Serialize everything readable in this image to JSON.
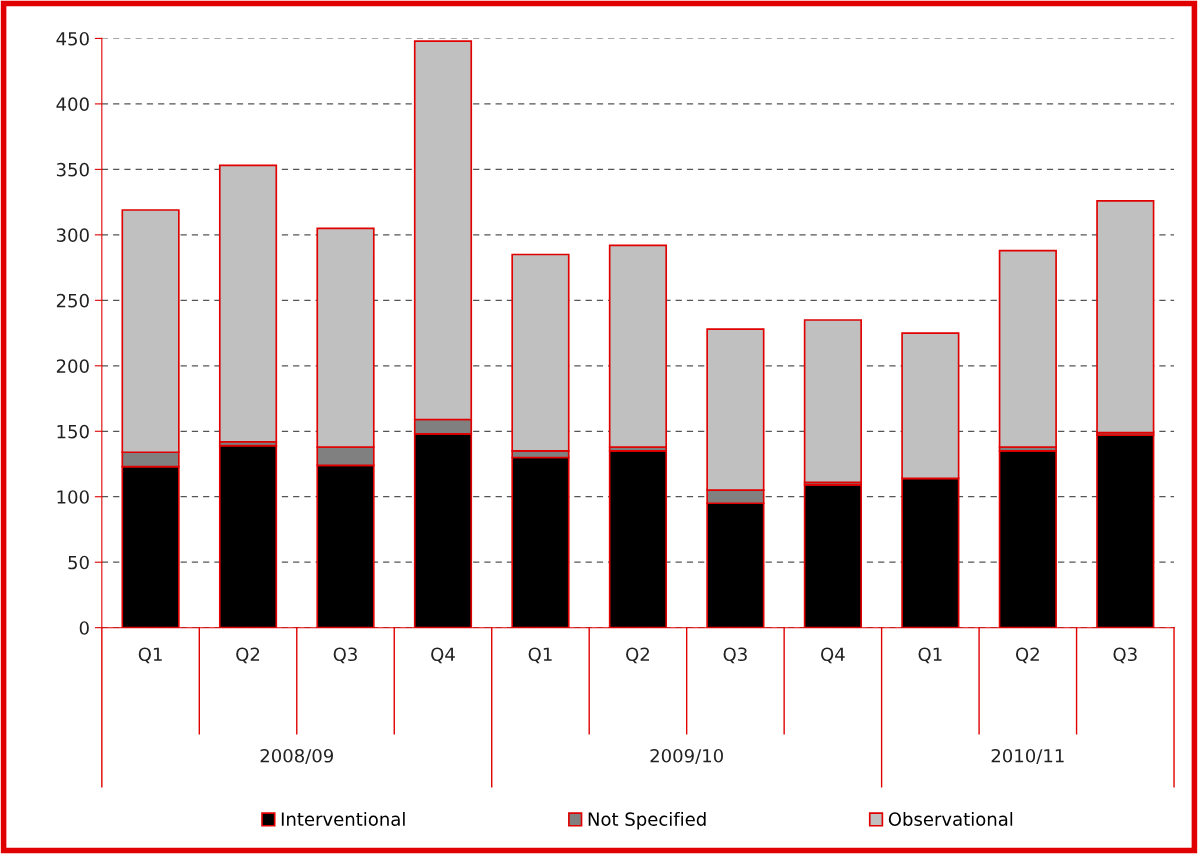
{
  "chart_data": {
    "type": "bar",
    "stacked": true,
    "categories": [
      "Q1",
      "Q2",
      "Q3",
      "Q4",
      "Q1",
      "Q2",
      "Q3",
      "Q4",
      "Q1",
      "Q2",
      "Q3"
    ],
    "series": [
      {
        "name": "Interventional",
        "color": "#000000",
        "values": [
          123,
          139,
          124,
          148,
          130,
          135,
          95,
          109,
          114,
          135,
          147
        ]
      },
      {
        "name": "Not Specified",
        "color": "#808080",
        "values": [
          11,
          3,
          14,
          11,
          5,
          3,
          10,
          2,
          0,
          3,
          2
        ]
      },
      {
        "name": "Observational",
        "color": "#c0c0c0",
        "values": [
          185,
          211,
          167,
          289,
          150,
          154,
          123,
          124,
          111,
          150,
          177
        ]
      }
    ],
    "ylim": [
      0,
      450
    ],
    "yticks": [
      0,
      50,
      100,
      150,
      200,
      250,
      300,
      350,
      400,
      450
    ],
    "grid": "y",
    "legend": "bottom",
    "annotations": [
      "2008/09",
      "2009/10",
      "2010/11"
    ]
  }
}
